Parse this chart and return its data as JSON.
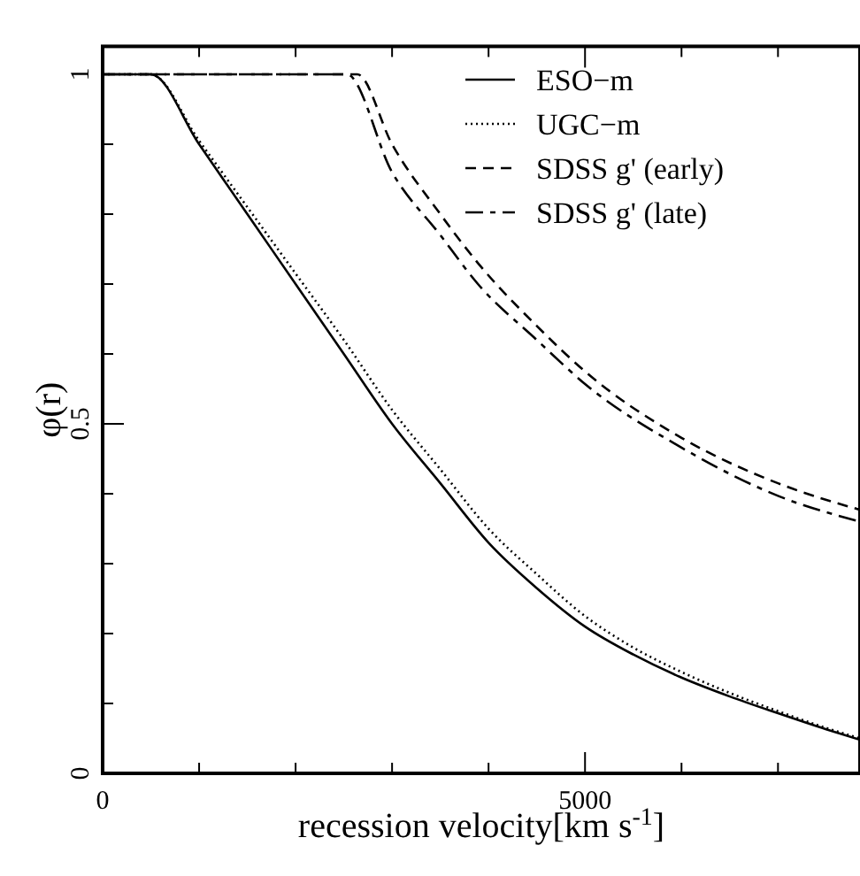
{
  "chart_data": {
    "type": "line",
    "xlabel": "recession velocity[km s$^{-1}$]",
    "ylabel": "φ(r)",
    "xlim": [
      0,
      7850
    ],
    "ylim": [
      0,
      1.04
    ],
    "xticks": [
      0,
      {
        "value": 1000,
        "label": null
      },
      {
        "value": 2000,
        "label": null
      },
      {
        "value": 3000,
        "label": null
      },
      {
        "value": 4000,
        "label": null
      },
      5000,
      {
        "value": 6000,
        "label": null
      },
      {
        "value": 7000,
        "label": null
      }
    ],
    "yticks": [
      0,
      {
        "value": 0.1,
        "label": null
      },
      {
        "value": 0.2,
        "label": null
      },
      {
        "value": 0.3,
        "label": null
      },
      {
        "value": 0.4,
        "label": null
      },
      0.5,
      {
        "value": 0.6,
        "label": null
      },
      {
        "value": 0.7,
        "label": null
      },
      {
        "value": 0.8,
        "label": null
      },
      {
        "value": 0.9,
        "label": null
      },
      1
    ],
    "legend": "top right",
    "grid": false,
    "series": [
      {
        "name": "ESO−m",
        "color": "#000000",
        "line_style": "solid",
        "x": [
          0,
          500,
          1000,
          1500,
          2000,
          2500,
          3000,
          3500,
          4000,
          4500,
          5000,
          5500,
          6000,
          6500,
          7000,
          7500,
          7850
        ],
        "values": [
          1,
          1,
          0.9,
          0.8,
          0.7,
          0.6,
          0.5,
          0.415,
          0.33,
          0.265,
          0.21,
          0.17,
          0.137,
          0.11,
          0.086,
          0.063,
          0.048
        ]
      },
      {
        "name": "UGC−m",
        "color": "#000000",
        "line_style": "dotted",
        "x": [
          0,
          500,
          1000,
          1500,
          2000,
          2500,
          3000,
          3500,
          4000,
          4500,
          5000,
          5500,
          6000,
          6500,
          7000,
          7500,
          7850
        ],
        "values": [
          1,
          1,
          0.905,
          0.81,
          0.715,
          0.62,
          0.52,
          0.435,
          0.35,
          0.285,
          0.225,
          0.18,
          0.145,
          0.115,
          0.089,
          0.065,
          0.05
        ]
      },
      {
        "name": "SDSS g' (early)",
        "color": "#000000",
        "line_style": "dashed",
        "x": [
          0,
          2640,
          3000,
          3500,
          3890,
          4500,
          5000,
          6000,
          7000,
          7850
        ],
        "values": [
          1,
          1,
          0.9,
          0.8,
          0.73,
          0.64,
          0.575,
          0.48,
          0.415,
          0.377
        ]
      },
      {
        "name": "SDSS g' (late)",
        "color": "#000000",
        "line_style": "dashdot",
        "x": [
          0,
          2530,
          3000,
          3500,
          3890,
          4500,
          5000,
          6000,
          7000,
          7850
        ],
        "values": [
          1,
          1,
          0.86,
          0.77,
          0.7,
          0.62,
          0.557,
          0.466,
          0.397,
          0.36
        ]
      }
    ]
  }
}
